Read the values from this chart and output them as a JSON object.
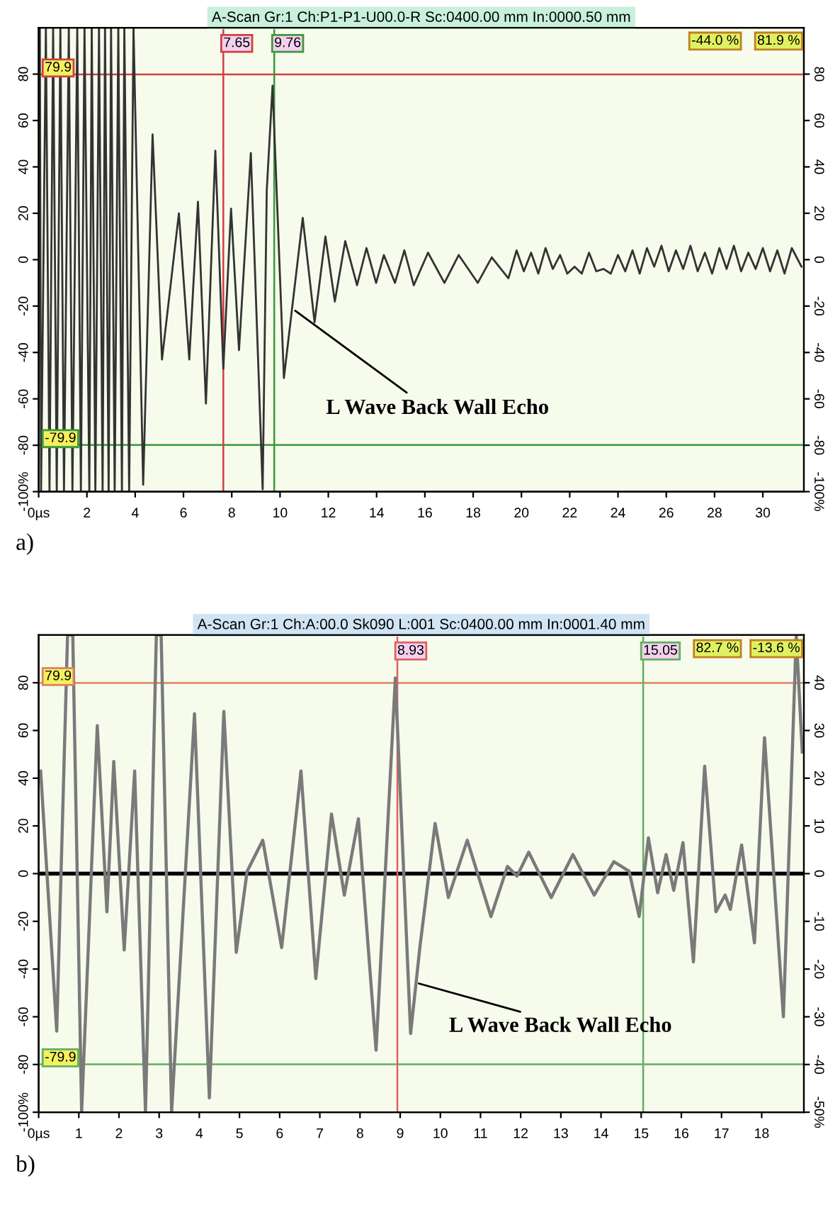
{
  "chart_data": [
    {
      "type": "line",
      "title": "A-Scan Gr:1 Ch:P1-P1-U00.0-R Sc:0400.00 mm In:0000.50 mm",
      "xlim": [
        0,
        31.7
      ],
      "xticks": [
        {
          "value": 0,
          "label": "0µs"
        },
        2,
        4,
        6,
        8,
        10,
        12,
        14,
        16,
        18,
        20,
        22,
        24,
        26,
        28,
        30
      ],
      "ylim": [
        -100,
        100
      ],
      "yticks": [
        {
          "value": -100,
          "label": "-100%"
        },
        -80,
        -60,
        -40,
        -20,
        0,
        20,
        40,
        60,
        80
      ],
      "y2lim": [
        -100,
        100
      ],
      "y2ticks": [
        {
          "value": -100,
          "label": "-100%"
        },
        -80,
        -60,
        -40,
        -20,
        0,
        20,
        40,
        60,
        80
      ],
      "series": [
        {
          "color": "#333333",
          "x": [
            0.05,
            0.1,
            0.3,
            0.45,
            0.6,
            0.75,
            0.9,
            1.05,
            1.25,
            1.4,
            1.6,
            1.75,
            1.9,
            2.1,
            2.2,
            2.35,
            2.5,
            2.65,
            2.75,
            2.9,
            3.0,
            3.15,
            3.3,
            3.45,
            3.55,
            3.75,
            3.93,
            4.33,
            4.72,
            5.11,
            5.81,
            6.24,
            6.6,
            6.93,
            7.32,
            7.65,
            7.97,
            8.3,
            8.79,
            9.28,
            9.45,
            9.69,
            10.16,
            10.94,
            11.43,
            11.88,
            12.27,
            12.7,
            13.19,
            13.58,
            13.98,
            14.3,
            14.76,
            15.15,
            15.54,
            16.13,
            16.81,
            17.4,
            18.19,
            18.77,
            19.46,
            19.8,
            20.1,
            20.4,
            20.7,
            21.0,
            21.3,
            21.6,
            21.9,
            22.2,
            22.5,
            22.8,
            23.1,
            23.4,
            23.7,
            24.0,
            24.3,
            24.6,
            24.9,
            25.2,
            25.5,
            25.8,
            26.1,
            26.4,
            26.7,
            27.0,
            27.3,
            27.6,
            27.9,
            28.2,
            28.5,
            28.8,
            29.1,
            29.4,
            29.7,
            30.0,
            30.3,
            30.6,
            30.9,
            31.2,
            31.6
          ],
          "values": [
            100,
            -100,
            100,
            -100,
            100,
            -100,
            100,
            -100,
            100,
            -100,
            100,
            -100,
            100,
            -100,
            100,
            -100,
            100,
            -100,
            100,
            -100,
            100,
            -100,
            100,
            -100,
            100,
            -100,
            100,
            -97,
            54,
            -43,
            20,
            -43,
            25,
            -62,
            47,
            -47,
            22,
            -39,
            46,
            -99,
            30,
            75,
            -51,
            18,
            -27,
            10,
            -18,
            8,
            -11,
            5,
            -10,
            2,
            -10,
            4,
            -11,
            3,
            -10,
            2,
            -10,
            1,
            -8,
            4,
            -5,
            3,
            -6,
            5,
            -4,
            2,
            -6,
            -3,
            -6,
            3,
            -5,
            -4,
            -6,
            2,
            -5,
            4,
            -6,
            5,
            -3,
            6,
            -5,
            4,
            -4,
            6,
            -5,
            3,
            -6,
            5,
            -4,
            6,
            -5,
            3,
            -4,
            5,
            -5,
            4,
            -6,
            5,
            -3
          ]
        }
      ],
      "ref_lines": [
        {
          "axis": "y",
          "value": 79.9,
          "label": "79.9",
          "color": "#d04040"
        },
        {
          "axis": "y",
          "value": -79.9,
          "label": "-79.9",
          "color": "#3a9a3a"
        },
        {
          "axis": "x",
          "value": 7.65,
          "label": "7.65",
          "color": "#d04040"
        },
        {
          "axis": "x",
          "value": 9.76,
          "label": "9.76",
          "color": "#3a9a3a"
        }
      ],
      "annotations": [
        "-44.0 %",
        "81.9 %",
        {
          "text": "L Wave Back Wall Echo",
          "x": 10.5,
          "y": -21
        },
        "a)"
      ]
    },
    {
      "type": "line",
      "title": "A-Scan Gr:1 Ch:A:00.0 Sk090 L:001 Sc:0400.00 mm In:0001.40 mm",
      "xlim": [
        0,
        19.05
      ],
      "xticks": [
        {
          "value": 0,
          "label": "0µs"
        },
        1,
        2,
        3,
        4,
        5,
        6,
        7,
        8,
        9,
        10,
        11,
        12,
        13,
        14,
        15,
        16,
        17,
        18
      ],
      "ylim": [
        -100,
        100
      ],
      "yticks": [
        {
          "value": -100,
          "label": "-100%"
        },
        -80,
        -60,
        -40,
        -20,
        0,
        20,
        40,
        60,
        80
      ],
      "y2lim": [
        -50,
        50
      ],
      "y2ticks": [
        {
          "value": -50,
          "label": "-50%"
        },
        -40,
        -30,
        -20,
        -10,
        0,
        10,
        20,
        30,
        40
      ],
      "series": [
        {
          "color": "#7a7a7a",
          "x": [
            0.05,
            0.45,
            0.72,
            0.85,
            1.07,
            1.46,
            1.7,
            1.87,
            2.13,
            2.39,
            2.66,
            2.93,
            3.05,
            3.31,
            3.88,
            4.25,
            4.61,
            4.92,
            5.19,
            5.58,
            6.05,
            6.53,
            6.9,
            7.29,
            7.61,
            7.96,
            8.4,
            8.88,
            9.26,
            9.49,
            9.87,
            10.2,
            10.67,
            11.26,
            11.67,
            11.91,
            12.2,
            12.76,
            13.3,
            13.83,
            14.32,
            14.7,
            14.95,
            15.18,
            15.41,
            15.62,
            15.81,
            16.04,
            16.3,
            16.58,
            16.86,
            17.09,
            17.22,
            17.5,
            17.82,
            18.07,
            18.54,
            18.86,
            19.01
          ],
          "values": [
            43,
            -66,
            100,
            100,
            -100,
            62,
            -16,
            47,
            -32,
            43,
            -100,
            100,
            100,
            -100,
            67,
            -94,
            68,
            -33,
            1,
            14,
            -31,
            43,
            -44,
            25,
            -9,
            23,
            -74,
            82,
            -67,
            -31,
            21,
            -10,
            14,
            -18,
            3,
            -1,
            9,
            -10,
            8,
            -9,
            5,
            1,
            -18,
            15,
            -8,
            8,
            -7,
            13,
            -37,
            45,
            -16,
            -9,
            -15,
            12,
            -29,
            57,
            -60,
            100,
            51
          ]
        }
      ],
      "ref_lines": [
        {
          "axis": "y",
          "value": 0,
          "color": "#000000"
        },
        {
          "axis": "y",
          "value": 79.9,
          "label": "79.9",
          "color": "#e08060"
        },
        {
          "axis": "y",
          "value": -79.9,
          "label": "-79.9",
          "color": "#60b060"
        },
        {
          "axis": "x",
          "value": 8.93,
          "label": "8.93",
          "color": "#e06060"
        },
        {
          "axis": "x",
          "value": 15.05,
          "label": "15.05",
          "color": "#60b060"
        }
      ],
      "annotations": [
        "82.7 %",
        "-13.6 %",
        {
          "text": "L Wave Back Wall Echo",
          "x": 9.37,
          "y": -45.6
        },
        "b)"
      ]
    }
  ]
}
